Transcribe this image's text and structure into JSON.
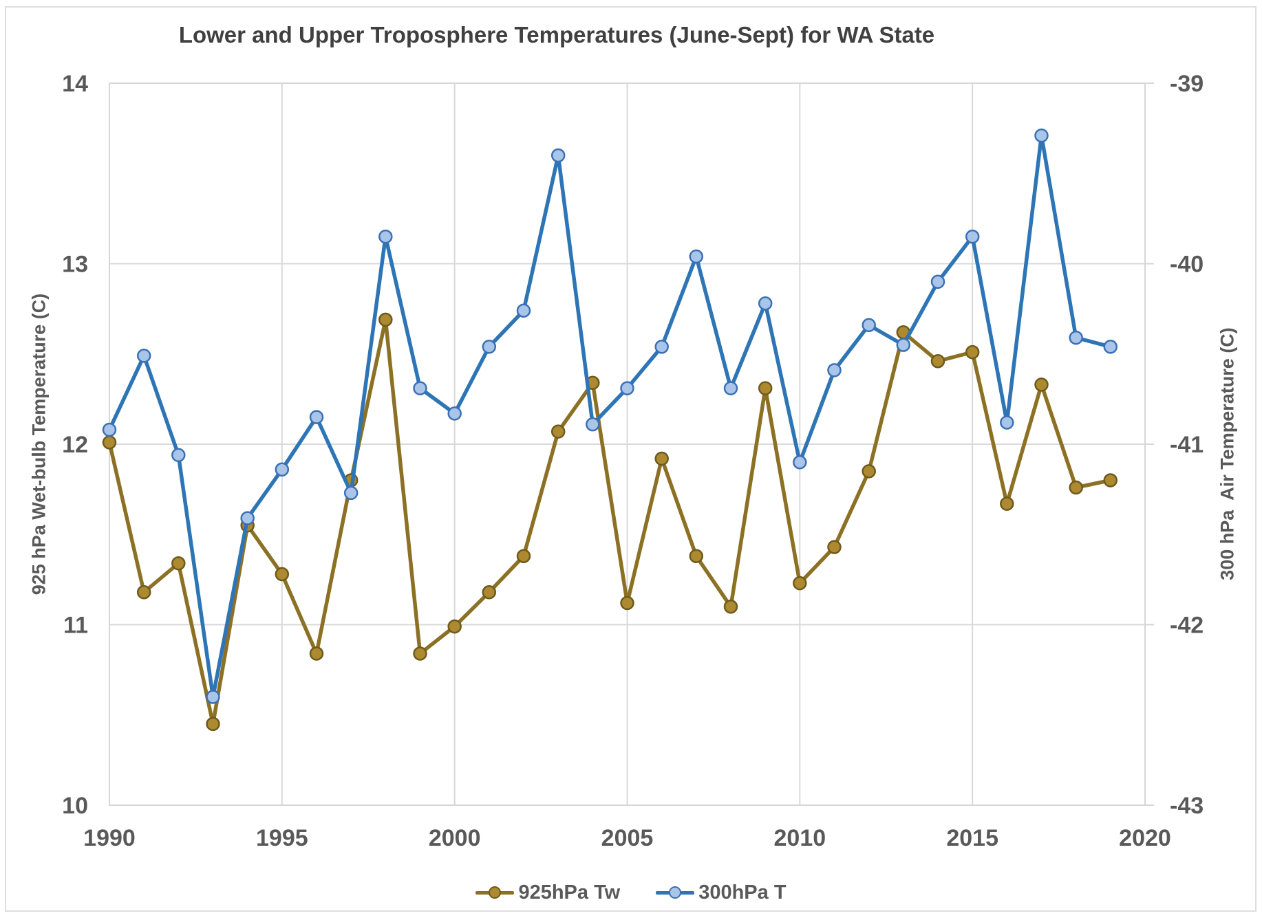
{
  "title": "Lower and Upper Troposphere Temperatures (June-Sept) for WA State",
  "left_axis": {
    "title": "925 hPa Wet-bulb Temperature (C)",
    "ticks": [
      "14",
      "13",
      "12",
      "11",
      "10"
    ]
  },
  "right_axis": {
    "title": "300 hPa  Air Temperature (C)",
    "ticks": [
      "-39",
      "-40",
      "-41",
      "-42",
      "-43"
    ]
  },
  "x_axis": {
    "ticks": [
      "1990",
      "1995",
      "2000",
      "2005",
      "2010",
      "2015",
      "2020"
    ]
  },
  "legend": {
    "items": [
      {
        "label": "925hPa Tw",
        "series_index": 0
      },
      {
        "label": "300hPa T",
        "series_index": 1
      }
    ]
  },
  "colors": {
    "gridline": "#D9D9D9",
    "plot_border": "#D6D6D6",
    "axis_text": "#595959",
    "title_text": "#404040",
    "chart_border": "#DFDFDF"
  },
  "chart_data": {
    "type": "line",
    "title": "Lower and Upper Troposphere Temperatures (June-Sept) for WA State",
    "xlabel": "",
    "left_ylabel": "925 hPa Wet-bulb Temperature (C)",
    "right_ylabel": "300 hPa  Air Temperature (C)",
    "grid": true,
    "legend_position": "bottom",
    "xlim": [
      1990,
      2020
    ],
    "left_ylim": [
      10,
      14
    ],
    "right_ylim": [
      -43,
      -39
    ],
    "x": [
      1990,
      1991,
      1992,
      1993,
      1994,
      1995,
      1996,
      1997,
      1998,
      1999,
      2000,
      2001,
      2002,
      2003,
      2004,
      2005,
      2006,
      2007,
      2008,
      2009,
      2010,
      2011,
      2012,
      2013,
      2014,
      2015,
      2016,
      2017,
      2018,
      2019
    ],
    "series": [
      {
        "name": "925hPa Tw",
        "axis": "left",
        "line_color": "#8C7125",
        "marker_fill": "#AD8A30",
        "marker_edge": "#6E5A1C",
        "values": [
          12.01,
          11.18,
          11.34,
          10.45,
          11.55,
          11.28,
          10.84,
          11.8,
          12.69,
          10.84,
          10.99,
          11.18,
          11.38,
          12.07,
          12.34,
          11.12,
          11.92,
          11.38,
          11.1,
          12.31,
          11.23,
          11.43,
          11.85,
          12.62,
          12.46,
          12.51,
          11.67,
          12.33,
          11.76,
          11.8
        ]
      },
      {
        "name": "300hPa T",
        "axis": "right",
        "line_color": "#2E75B6",
        "marker_fill": "#A9C6EA",
        "marker_edge": "#3B70B4",
        "values": [
          -40.92,
          -40.51,
          -41.06,
          -42.4,
          -41.41,
          -41.14,
          -40.85,
          -41.27,
          -39.85,
          -40.69,
          -40.83,
          -40.46,
          -40.26,
          -39.4,
          -40.89,
          -40.69,
          -40.46,
          -39.96,
          -40.69,
          -40.22,
          -41.1,
          -40.59,
          -40.34,
          -40.45,
          -40.1,
          -39.85,
          -40.88,
          -39.29,
          -40.41,
          -40.46
        ]
      }
    ]
  }
}
